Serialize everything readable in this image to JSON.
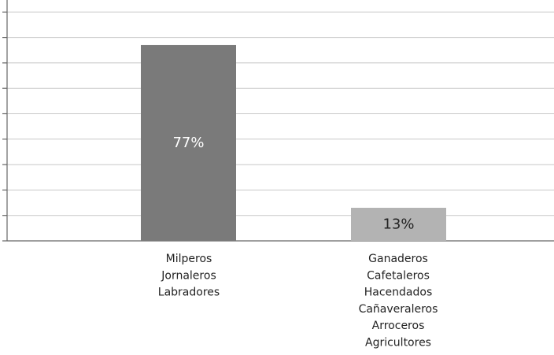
{
  "chart_data": {
    "type": "bar",
    "categories": [
      [
        "Milperos",
        "Jornaleros",
        "Labradores"
      ],
      [
        "Ganaderos",
        "Cafetaleros",
        "Hacendados",
        "Cañaveraleros",
        "Arroceros",
        "Agricultores"
      ]
    ],
    "values": [
      77,
      13
    ],
    "data_labels": [
      "77%",
      "13%"
    ],
    "bar_colors": [
      "#7a7a7a",
      "#b3b3b3"
    ],
    "data_label_colors": [
      "#ffffff",
      "#222222"
    ],
    "ylim": [
      0,
      90
    ],
    "grid": true,
    "grid_color": "#c8c8c8",
    "axis_color": "#666666",
    "title": "",
    "xlabel": "",
    "ylabel": ""
  }
}
